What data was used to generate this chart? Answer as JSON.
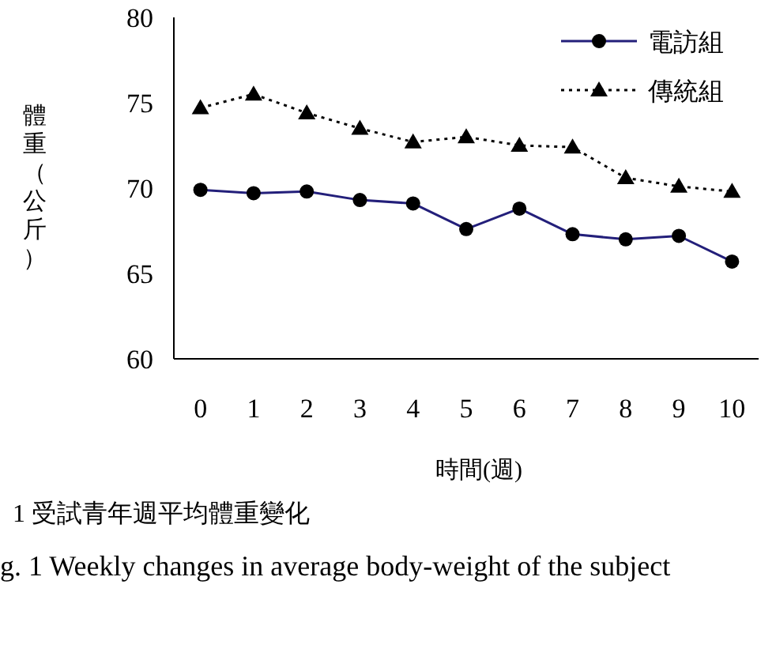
{
  "chart_data": {
    "type": "line",
    "ylabel": "體重（公斤）",
    "xlabel": "時間(週)",
    "categories": [
      "0",
      "1",
      "2",
      "3",
      "4",
      "5",
      "6",
      "7",
      "8",
      "9",
      "10"
    ],
    "series": [
      {
        "name": "電訪組",
        "color": "#231f7a",
        "marker": "circle",
        "line_style": "solid",
        "values": [
          69.9,
          69.7,
          69.8,
          69.3,
          69.1,
          67.6,
          68.8,
          67.3,
          67.0,
          67.2,
          65.7
        ]
      },
      {
        "name": "傳統組",
        "color": "#000000",
        "marker": "triangle",
        "line_style": "dotted",
        "values": [
          74.7,
          75.5,
          74.4,
          73.5,
          72.7,
          73.0,
          72.5,
          72.4,
          70.6,
          70.1,
          69.8
        ]
      }
    ],
    "ylim": [
      60,
      80
    ],
    "yticks": [
      60,
      65,
      70,
      75,
      80
    ],
    "grid": false,
    "legend": "top right",
    "annotations": [
      "1 受試青年週平均體重變化",
      "g. 1 Weekly changes in average body-weight of the subject"
    ]
  }
}
